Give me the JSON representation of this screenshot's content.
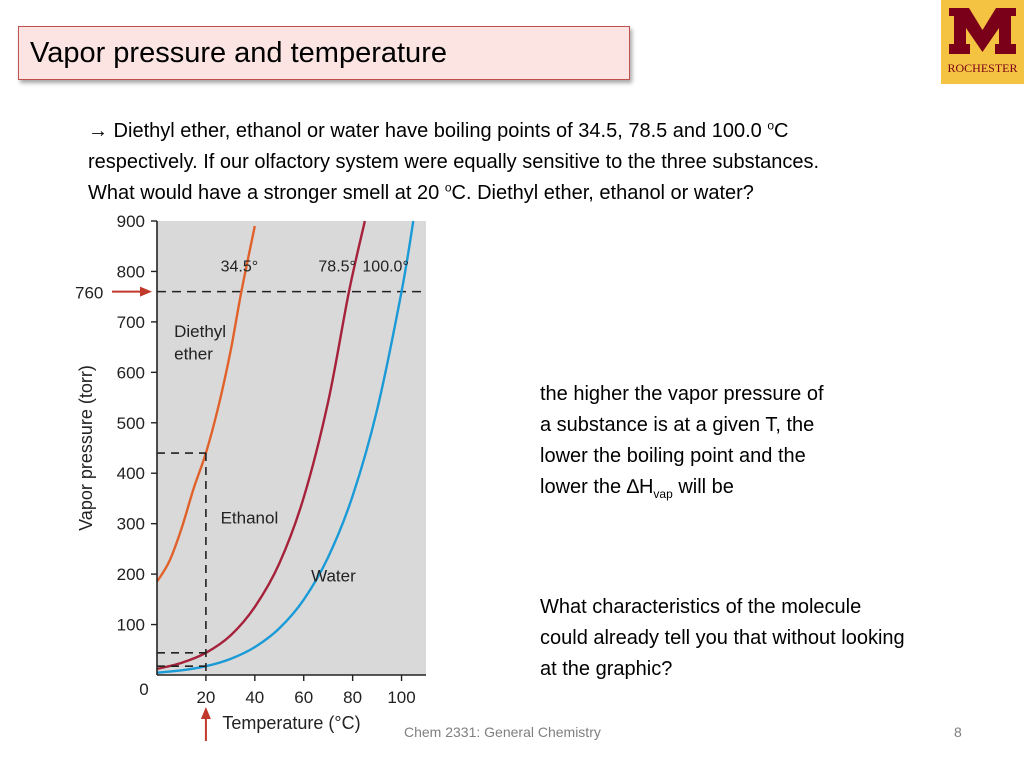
{
  "slide": {
    "title": "Vapor pressure and temperature",
    "logo_text": "ROCHESTER",
    "bullet": {
      "arrow": "→",
      "line1_before": " Diethyl ether, ethanol or water have boiling points of 34.5, 78.5 and 100.0 ",
      "line1_sup": "o",
      "line1_after": "C",
      "line2": "respectively. If our olfactory system were equally sensitive to the three substances.",
      "line3_before": "What would have a stronger smell at 20 ",
      "line3_sup": "o",
      "line3_after": "C. Diethyl ether, ethanol or water?"
    },
    "note1": {
      "line1": "the higher the vapor pressure of",
      "line2": "a substance is at a given T, the",
      "line3": "lower the boiling point and the",
      "line4_before": "lower the ",
      "delta": "∆",
      "line4_h": "H",
      "line4_sub": "vap",
      "line4_after": " will be"
    },
    "note2": {
      "line1": "What characteristics of the molecule",
      "line2": "could already tell you that without looking",
      "line3": "at the graphic?"
    },
    "footer": "Chem 2331: General Chemistry",
    "page_number": "8"
  },
  "chart_data": {
    "type": "line",
    "xlabel": "Temperature (°C)",
    "ylabel": "Vapor pressure (torr)",
    "xlim": [
      0,
      110
    ],
    "ylim": [
      0,
      900
    ],
    "x_ticks": [
      0,
      20,
      40,
      60,
      80,
      100
    ],
    "x_tick_labels": [
      "0",
      "20",
      "40",
      "60",
      "80",
      "100"
    ],
    "y_ticks": [
      100,
      200,
      300,
      400,
      500,
      600,
      700,
      800,
      900
    ],
    "y_tick_labels": [
      "100",
      "200",
      "300",
      "400",
      "500",
      "600",
      "700",
      "800",
      "900"
    ],
    "reference_line": {
      "y": 760,
      "label": "760"
    },
    "highlight_x": {
      "x": 20
    },
    "series": [
      {
        "name": "Diethyl ether",
        "color": "#e0622a",
        "x": [
          0,
          5,
          10,
          15,
          20,
          25,
          30,
          34.5,
          40
        ],
        "y": [
          185,
          225,
          290,
          370,
          440,
          530,
          640,
          760,
          890
        ]
      },
      {
        "name": "Ethanol",
        "color": "#a6213a",
        "x": [
          0,
          10,
          20,
          30,
          40,
          50,
          60,
          70,
          78.5,
          85
        ],
        "y": [
          12,
          24,
          44,
          78,
          135,
          221,
          352,
          542,
          760,
          900
        ]
      },
      {
        "name": "Water",
        "color": "#1a9ad6",
        "x": [
          0,
          10,
          20,
          30,
          40,
          50,
          60,
          70,
          80,
          90,
          100,
          105
        ],
        "y": [
          4.6,
          9.2,
          17.5,
          31.8,
          55.3,
          92.5,
          149.4,
          233.7,
          355.1,
          525.8,
          760,
          906
        ]
      }
    ],
    "annotations": [
      {
        "text": "34.5°"
      },
      {
        "text": "78.5°"
      },
      {
        "text": "100.0°"
      }
    ],
    "background": "#d9d9d9",
    "grid": false
  }
}
